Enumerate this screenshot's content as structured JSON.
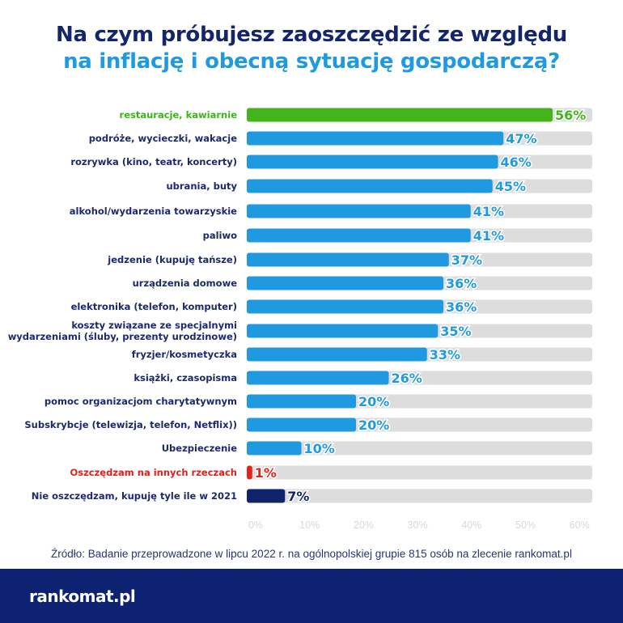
{
  "title_line1": "Na czym próbujesz zaoszczędzić ze względu",
  "title_line2": "na inflację i obecną sytuację gospodarczą?",
  "chart_data": {
    "type": "bar",
    "orientation": "horizontal",
    "categories": [
      "restauracje, kawiarnie",
      "podróże, wycieczki, wakacje",
      "rozrywka (kino, teatr, koncerty)",
      "ubrania, buty",
      "alkohol/wydarzenia towarzyskie",
      "paliwo",
      "jedzenie (kupuję tańsze)",
      "urządzenia domowe",
      "elektronika (telefon, komputer)",
      "koszty związane ze specjalnymi\nwydarzeniami (śluby, prezenty urodzinowe)",
      "fryzjer/kosmetyczka",
      "książki, czasopisma",
      "pomoc organizacjom charytatywnym",
      "Subskrybcje (telewizja, telefon, Netflix))",
      "Ubezpieczenie",
      "Oszczędzam na innych rzeczach",
      "Nie oszczędzam, kupuję tyle ile w 2021"
    ],
    "values": [
      56,
      47,
      46,
      45,
      41,
      41,
      37,
      36,
      36,
      35,
      33,
      26,
      20,
      20,
      10,
      1,
      7
    ],
    "value_labels": [
      "56%",
      "47%",
      "46%",
      "45%",
      "41%",
      "41%",
      "37%",
      "36%",
      "36%",
      "35%",
      "33%",
      "26%",
      "20%",
      "20%",
      "10%",
      "1%",
      "7%"
    ],
    "colors": [
      "#43b51a",
      "#1f9ae0",
      "#1f9ae0",
      "#1f9ae0",
      "#1f9ae0",
      "#1f9ae0",
      "#1f9ae0",
      "#1f9ae0",
      "#1f9ae0",
      "#1f9ae0",
      "#1f9ae0",
      "#1f9ae0",
      "#1f9ae0",
      "#1f9ae0",
      "#1f9ae0",
      "#e3221c",
      "#10246e"
    ],
    "label_colors": [
      "#3cb416",
      "#1a2a6c",
      "#1a2a6c",
      "#1a2a6c",
      "#1a2a6c",
      "#1a2a6c",
      "#1a2a6c",
      "#1a2a6c",
      "#1a2a6c",
      "#1a2a6c",
      "#1a2a6c",
      "#1a2a6c",
      "#1a2a6c",
      "#1a2a6c",
      "#1a2a6c",
      "#e0201b",
      "#1a2a6c"
    ],
    "track_color": "#dddddd",
    "xlim": [
      0,
      60
    ],
    "xticks": [
      "0%",
      "10%",
      "20%",
      "30%",
      "40%",
      "50%",
      "60%"
    ],
    "grid": false
  },
  "source": "Źródło: Badanie przeprowadzone w lipcu 2022 r. na ogólnopolskiej grupie 815 osób na zlecenie rankomat.pl",
  "logo": "rankomat.pl"
}
